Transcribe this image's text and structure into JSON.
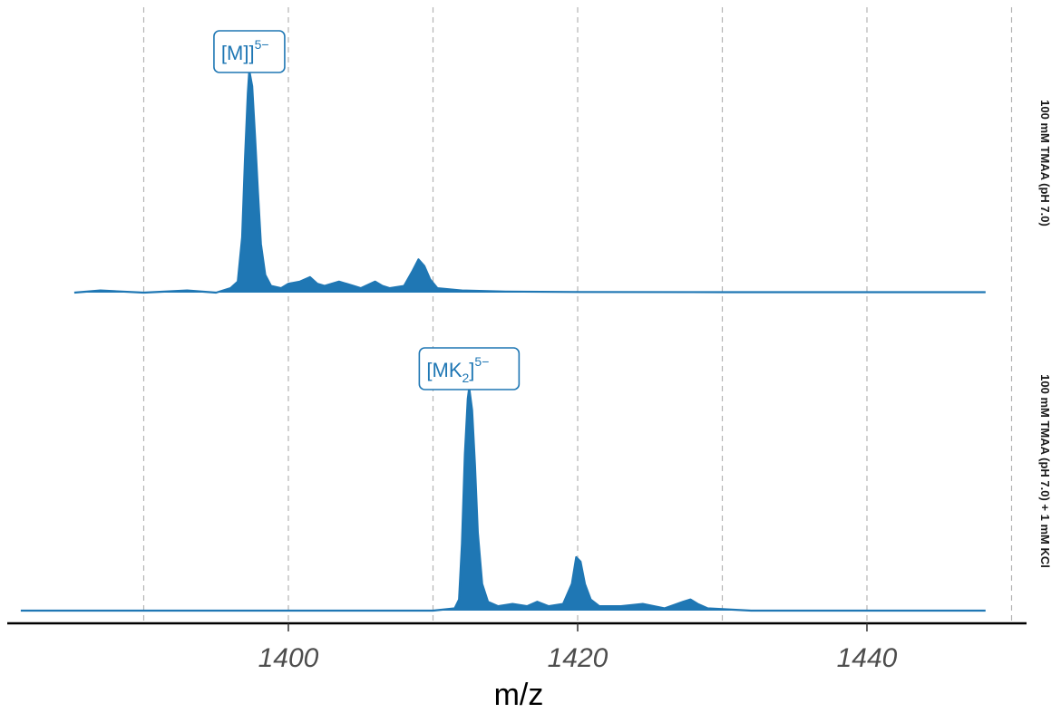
{
  "chart_data": {
    "type": "line",
    "xlabel": "m/z",
    "x_ticks": [
      1400,
      1420,
      1440
    ],
    "grid_x": [
      1390,
      1400,
      1410,
      1420,
      1430,
      1440,
      1450
    ],
    "xlim": [
      1381.5,
      1452
    ],
    "grid": true,
    "color": "#1f77b4",
    "panels": [
      {
        "label": "100 mM TMAA (pH 7.0)",
        "x_range": [
          1385.2,
          1448.2
        ],
        "ylim": [
          0,
          1.05
        ],
        "annotation": {
          "main": "[M]",
          "subscript": "",
          "superscript": "5−",
          "x": 1397.3
        },
        "points": [
          [
            1385.2,
            0.0
          ],
          [
            1387.0,
            0.01
          ],
          [
            1390.0,
            0.0
          ],
          [
            1393.0,
            0.01
          ],
          [
            1395.0,
            0.0
          ],
          [
            1396.0,
            0.02
          ],
          [
            1396.5,
            0.05
          ],
          [
            1396.8,
            0.25
          ],
          [
            1397.0,
            0.6
          ],
          [
            1397.2,
            0.9
          ],
          [
            1397.3,
            1.0
          ],
          [
            1397.5,
            0.93
          ],
          [
            1397.7,
            0.7
          ],
          [
            1397.9,
            0.45
          ],
          [
            1398.1,
            0.22
          ],
          [
            1398.4,
            0.08
          ],
          [
            1398.8,
            0.03
          ],
          [
            1399.5,
            0.02
          ],
          [
            1400.0,
            0.04
          ],
          [
            1400.8,
            0.05
          ],
          [
            1401.5,
            0.07
          ],
          [
            1402.0,
            0.04
          ],
          [
            1402.5,
            0.03
          ],
          [
            1403.5,
            0.05
          ],
          [
            1404.5,
            0.03
          ],
          [
            1405.0,
            0.02
          ],
          [
            1406.0,
            0.05
          ],
          [
            1406.5,
            0.03
          ],
          [
            1407.0,
            0.02
          ],
          [
            1408.0,
            0.03
          ],
          [
            1408.6,
            0.1
          ],
          [
            1409.0,
            0.15
          ],
          [
            1409.4,
            0.12
          ],
          [
            1409.8,
            0.06
          ],
          [
            1410.3,
            0.02
          ],
          [
            1412.0,
            0.01
          ],
          [
            1415.0,
            0.005
          ],
          [
            1420.0,
            0.003
          ],
          [
            1430.0,
            0.002
          ],
          [
            1440.0,
            0.002
          ],
          [
            1448.2,
            0.002
          ]
        ]
      },
      {
        "label": "100 mM TMAA (pH 7.0) + 1 mM KCl",
        "x_range": [
          1381.5,
          1448.2
        ],
        "ylim": [
          0,
          1.05
        ],
        "annotation": {
          "main": "[MK",
          "subscript": "2",
          "superscript": "5−",
          "x": 1412.5
        },
        "points": [
          [
            1381.5,
            0.0
          ],
          [
            1390.0,
            0.0
          ],
          [
            1400.0,
            0.0
          ],
          [
            1410.0,
            0.0
          ],
          [
            1411.5,
            0.01
          ],
          [
            1411.8,
            0.05
          ],
          [
            1412.0,
            0.3
          ],
          [
            1412.2,
            0.7
          ],
          [
            1412.4,
            0.95
          ],
          [
            1412.5,
            1.0
          ],
          [
            1412.7,
            0.9
          ],
          [
            1412.9,
            0.65
          ],
          [
            1413.1,
            0.35
          ],
          [
            1413.4,
            0.12
          ],
          [
            1413.8,
            0.04
          ],
          [
            1414.5,
            0.02
          ],
          [
            1415.5,
            0.03
          ],
          [
            1416.5,
            0.02
          ],
          [
            1417.2,
            0.04
          ],
          [
            1418.0,
            0.02
          ],
          [
            1419.0,
            0.03
          ],
          [
            1419.6,
            0.12
          ],
          [
            1419.9,
            0.24
          ],
          [
            1420.2,
            0.22
          ],
          [
            1420.5,
            0.12
          ],
          [
            1420.9,
            0.05
          ],
          [
            1421.5,
            0.02
          ],
          [
            1423.0,
            0.02
          ],
          [
            1424.5,
            0.03
          ],
          [
            1426.0,
            0.01
          ],
          [
            1427.3,
            0.04
          ],
          [
            1427.8,
            0.05
          ],
          [
            1428.3,
            0.03
          ],
          [
            1429.0,
            0.01
          ],
          [
            1432.0,
            0.0
          ],
          [
            1440.0,
            0.0
          ],
          [
            1448.2,
            0.0
          ]
        ]
      }
    ]
  }
}
